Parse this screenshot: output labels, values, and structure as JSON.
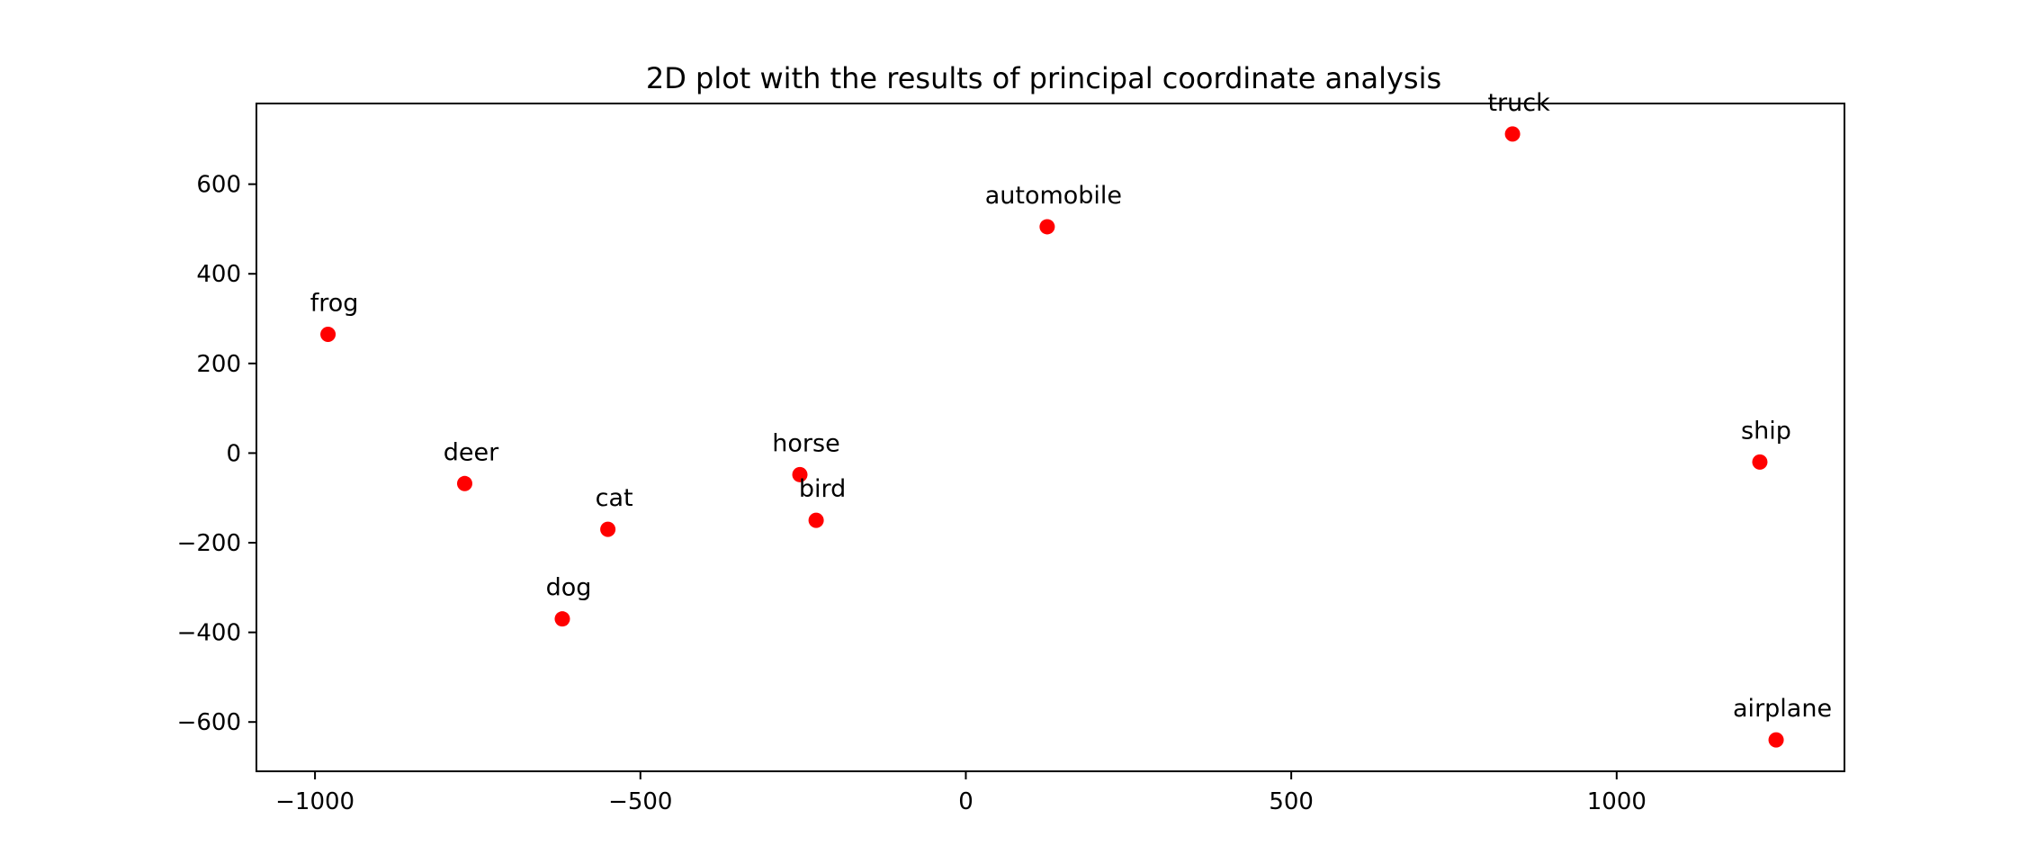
{
  "chart_data": {
    "type": "scatter",
    "title": "2D plot with the results of principal coordinate analysis",
    "xlabel": "",
    "ylabel": "",
    "xlim": [
      -1090,
      1350
    ],
    "ylim": [
      -710,
      780
    ],
    "xticks": [
      -1000,
      -500,
      0,
      500,
      1000
    ],
    "xtick_labels": [
      "−1000",
      "−500",
      "0",
      "500",
      "1000"
    ],
    "yticks": [
      600,
      400,
      200,
      0,
      -200,
      -400,
      -600
    ],
    "ytick_labels": [
      "600",
      "400",
      "200",
      "0",
      "−200",
      "−400",
      "−600"
    ],
    "grid": false,
    "point_color": "#ff0000",
    "points": [
      {
        "label": "truck",
        "x": 840,
        "y": 712
      },
      {
        "label": "automobile",
        "x": 125,
        "y": 505
      },
      {
        "label": "frog",
        "x": -980,
        "y": 265
      },
      {
        "label": "deer",
        "x": -770,
        "y": -68
      },
      {
        "label": "horse",
        "x": -255,
        "y": -48
      },
      {
        "label": "bird",
        "x": -230,
        "y": -150
      },
      {
        "label": "cat",
        "x": -550,
        "y": -170
      },
      {
        "label": "dog",
        "x": -620,
        "y": -370
      },
      {
        "label": "ship",
        "x": 1220,
        "y": -20
      },
      {
        "label": "airplane",
        "x": 1245,
        "y": -640
      }
    ]
  }
}
